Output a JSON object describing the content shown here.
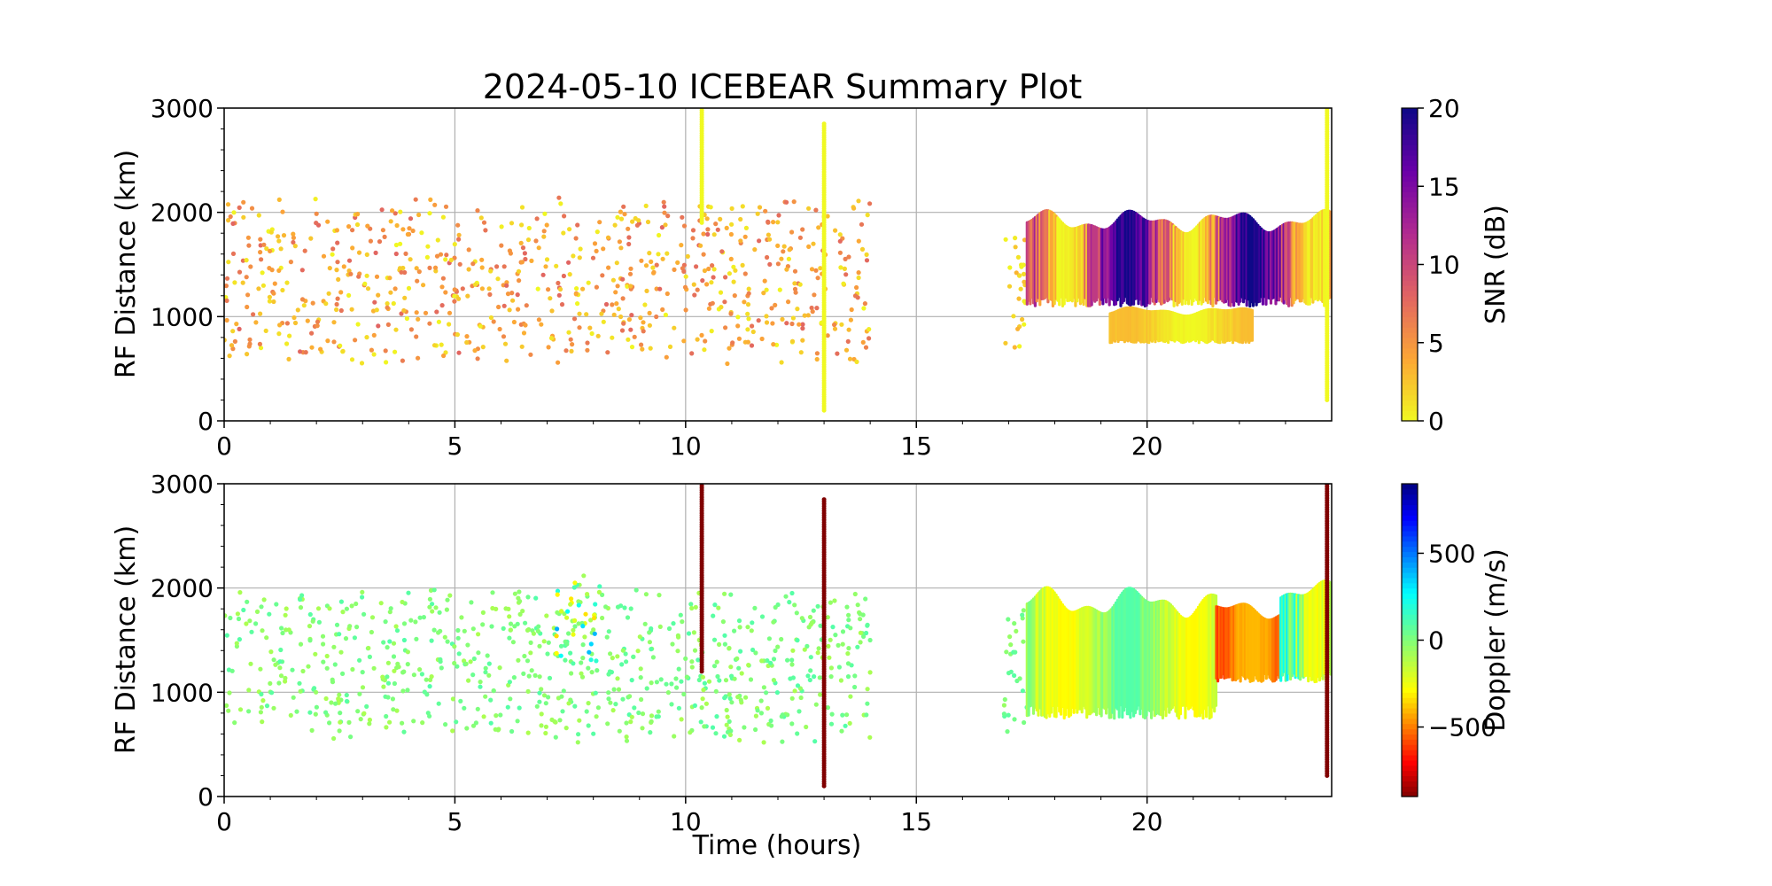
{
  "chart_data": [
    {
      "type": "scatter",
      "panel": "snr",
      "title": "2024-05-10 ICEBEAR Summary Plot",
      "xlabel": "",
      "ylabel": "RF Distance (km)",
      "xlim": [
        0,
        24
      ],
      "ylim": [
        0,
        3000
      ],
      "xticks": [
        "0",
        "5",
        "10",
        "15",
        "20"
      ],
      "yticks": [
        "0",
        "1000",
        "2000",
        "3000"
      ],
      "grid": true,
      "colorbar": {
        "label": "SNR (dB)",
        "range": [
          0,
          20
        ],
        "ticks": [
          "0",
          "5",
          "10",
          "15",
          "20"
        ],
        "colormap": "plasma_r"
      },
      "features": [
        {
          "kind": "scatter-region",
          "x_range": [
            0,
            14
          ],
          "y_range": [
            250,
            2150
          ],
          "value_range": [
            0,
            8
          ]
        },
        {
          "kind": "vertical-streak",
          "x": 10.35,
          "y_range": [
            1900,
            3000
          ],
          "value": 0
        },
        {
          "kind": "vertical-streak",
          "x": 13.0,
          "y_range": [
            100,
            2850
          ],
          "value": 0
        },
        {
          "kind": "scatter-region",
          "x_range": [
            16.9,
            17.4
          ],
          "y_range": [
            400,
            1850
          ],
          "value_range": [
            0,
            4
          ]
        },
        {
          "kind": "dense-echo-band",
          "x_range": [
            17.4,
            24
          ],
          "y_range": [
            1100,
            2050
          ],
          "value_range": [
            0,
            20
          ]
        },
        {
          "kind": "dense-echo-band",
          "x_range": [
            19.2,
            22.3
          ],
          "y_range": [
            750,
            1100
          ],
          "value_range": [
            0,
            3
          ]
        },
        {
          "kind": "vertical-streak",
          "x": 23.9,
          "y_range": [
            200,
            3000
          ],
          "value": 0
        }
      ]
    },
    {
      "type": "scatter",
      "panel": "doppler",
      "title": "",
      "xlabel": "Time (hours)",
      "ylabel": "RF Distance (km)",
      "xlim": [
        0,
        24
      ],
      "ylim": [
        0,
        3000
      ],
      "xticks": [
        "0",
        "5",
        "10",
        "15",
        "20"
      ],
      "yticks": [
        "0",
        "1000",
        "2000",
        "3000"
      ],
      "grid": true,
      "colorbar": {
        "label": "Doppler (m/s)",
        "range": [
          -900,
          900
        ],
        "ticks": [
          "−500",
          "0",
          "500"
        ],
        "tick_values": [
          -500,
          0,
          500
        ],
        "colormap": "jet_r"
      },
      "features": [
        {
          "kind": "scatter-region",
          "x_range": [
            0,
            14
          ],
          "y_range": [
            250,
            2000
          ],
          "value_range": [
            -100,
            100
          ]
        },
        {
          "kind": "scatter-cluster",
          "x_range": [
            7.2,
            8.2
          ],
          "y_range": [
            1050,
            2150
          ],
          "value_range": [
            -400,
            450
          ]
        },
        {
          "kind": "vertical-streak",
          "x": 10.35,
          "y_range": [
            1200,
            3000
          ],
          "value": -900
        },
        {
          "kind": "vertical-streak",
          "x": 13.0,
          "y_range": [
            100,
            2850
          ],
          "value": -900
        },
        {
          "kind": "scatter-region",
          "x_range": [
            16.9,
            17.4
          ],
          "y_range": [
            400,
            1850
          ],
          "value_range": [
            -50,
            100
          ]
        },
        {
          "kind": "dense-echo-band",
          "x_range": [
            17.4,
            21.5
          ],
          "y_range": [
            750,
            2050
          ],
          "value_range": [
            -300,
            100
          ]
        },
        {
          "kind": "dense-echo-band",
          "x_range": [
            21.5,
            22.9
          ],
          "y_range": [
            1100,
            1900
          ],
          "value_range": [
            -700,
            -400
          ]
        },
        {
          "kind": "dense-echo-band",
          "x_range": [
            22.9,
            24
          ],
          "y_range": [
            1100,
            2100
          ],
          "value_range": [
            -300,
            900
          ]
        },
        {
          "kind": "vertical-streak",
          "x": 23.9,
          "y_range": [
            200,
            3000
          ],
          "value": -900
        }
      ]
    }
  ]
}
